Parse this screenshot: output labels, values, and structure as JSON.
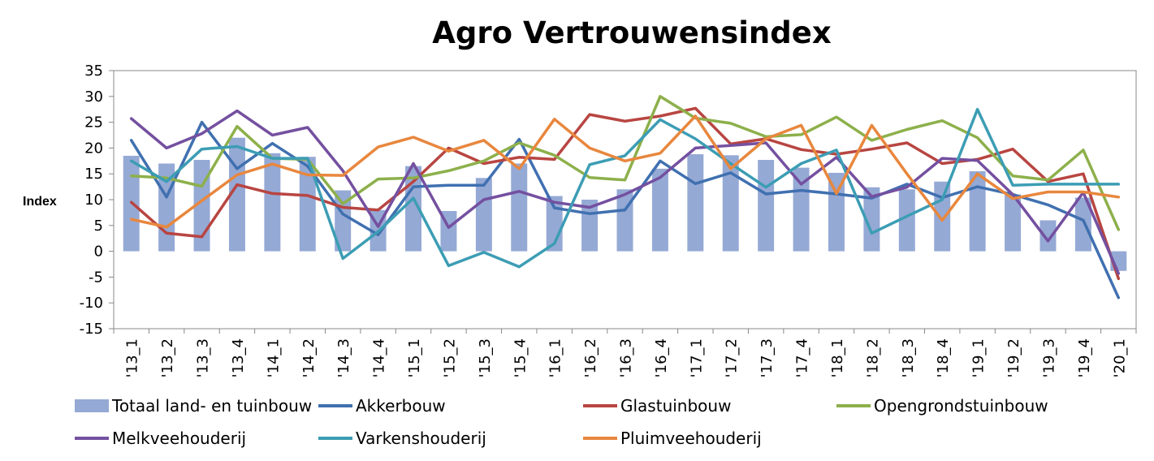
{
  "chart_data": {
    "type": "bar+line",
    "title": "Agro Vertrouwensindex",
    "ylabel": "Index",
    "xlabel": "",
    "ylim": [
      -15,
      35
    ],
    "yticks": [
      35,
      30,
      25,
      20,
      15,
      10,
      5,
      0,
      -5,
      -10,
      -15
    ],
    "grid": false,
    "legend_position": "bottom",
    "categories": [
      "'13_1",
      "'13_2",
      "'13_3",
      "'13_4",
      "'14_1",
      "'14_2",
      "'14_3",
      "'14_4",
      "'15_1",
      "'15_2",
      "'15_3",
      "'15_4",
      "'16_1",
      "'16_2",
      "'16_3",
      "'16_4",
      "'17_1",
      "'17_2",
      "'17_3",
      "'17_4",
      "'18_1",
      "'18_2",
      "'18_3",
      "'18_4",
      "'19_1",
      "'19_2",
      "'19_3",
      "'19_4",
      "'20_1"
    ],
    "series": [
      {
        "name": "Totaal land- en tuinbouw",
        "kind": "bar",
        "color": "#95a9d5",
        "values": [
          18.5,
          17,
          17.7,
          22,
          19,
          18.3,
          11.8,
          8,
          16.5,
          7.8,
          14.2,
          17,
          10.7,
          10,
          12,
          16,
          18.8,
          18.6,
          17.7,
          16.2,
          15.2,
          12.4,
          12,
          13.5,
          15.5,
          11,
          6,
          10.4,
          -3.8
        ]
      },
      {
        "name": "Akkerbouw",
        "kind": "line",
        "color": "#4070b0",
        "values": [
          21.5,
          10.5,
          25,
          16,
          20.9,
          16.5,
          7.2,
          3.2,
          12.5,
          12.8,
          12.8,
          21.7,
          8.4,
          7.3,
          8,
          17.5,
          13.1,
          15.2,
          11.1,
          11.8,
          11.1,
          10.3,
          13,
          10.4,
          12.5,
          11,
          9,
          6,
          -9
        ]
      },
      {
        "name": "Glastuinbouw",
        "kind": "line",
        "color": "#b84541",
        "values": [
          9.5,
          3.5,
          2.8,
          12.9,
          11.2,
          10.8,
          8.5,
          8,
          13.5,
          20,
          17,
          18.2,
          17.8,
          26.5,
          25.2,
          26.2,
          27.7,
          20.8,
          21.8,
          19.7,
          18.8,
          19.8,
          21,
          17,
          17.8,
          19.8,
          13.5,
          15,
          -5.3
        ]
      },
      {
        "name": "Opengrondstuinbouw",
        "kind": "line",
        "color": "#8db04b",
        "values": [
          14.6,
          14.2,
          12.6,
          24.2,
          18,
          17.8,
          9.2,
          14,
          14.2,
          15.6,
          17.5,
          21,
          18.6,
          14.3,
          13.8,
          30,
          25.8,
          24.8,
          22.2,
          22.6,
          26,
          21.5,
          23.6,
          25.3,
          22,
          14.6,
          13.8,
          19.6,
          4.2
        ]
      },
      {
        "name": "Melkveehouderij",
        "kind": "line",
        "color": "#7450a0",
        "values": [
          25.7,
          20,
          22.8,
          27.2,
          22.5,
          24,
          15.6,
          4.8,
          17,
          4.6,
          10,
          11.6,
          9.5,
          8.5,
          11,
          14.3,
          20,
          20.5,
          21,
          13,
          18.2,
          10.6,
          12.4,
          18,
          17.6,
          11,
          2,
          11.4,
          -4.3
        ]
      },
      {
        "name": "Varkenshouderij",
        "kind": "line",
        "color": "#3c9db4",
        "values": [
          17.5,
          13.5,
          19.8,
          20.3,
          18,
          18,
          -1.4,
          3.8,
          10.3,
          -2.8,
          -0.2,
          -3,
          1.5,
          16.8,
          18.5,
          25.5,
          21.8,
          17,
          12.4,
          17,
          19.6,
          3.5,
          6.8,
          10,
          27.5,
          12.8,
          13,
          13,
          13
        ]
      },
      {
        "name": "Pluimveehouderij",
        "kind": "line",
        "color": "#e8873e",
        "values": [
          6.2,
          4.7,
          9.8,
          14.8,
          16.9,
          14.8,
          14.7,
          20.2,
          22.1,
          19.4,
          21.5,
          16,
          25.6,
          20,
          17.5,
          19,
          26.2,
          16,
          21.8,
          24.4,
          11.2,
          24.4,
          15,
          6,
          15,
          10.2,
          11.5,
          11.5,
          10.5
        ]
      }
    ]
  }
}
